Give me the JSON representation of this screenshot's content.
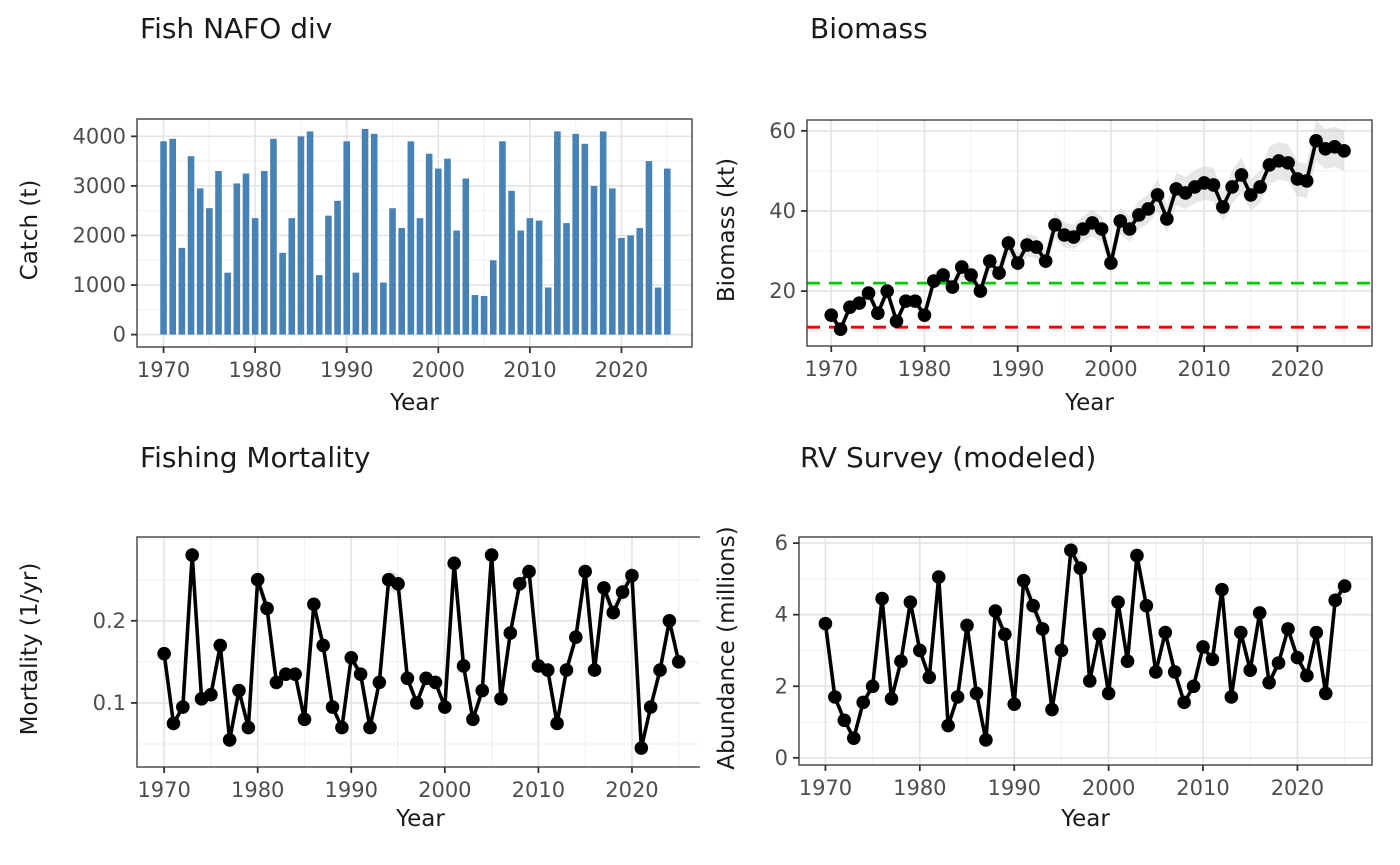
{
  "palette": {
    "bar_color": "#4682B4",
    "line_color": "#000000",
    "upper_reference_color": "#00CC00",
    "lower_reference_color": "#EE0000",
    "ribbon_color": "#C9C9C9"
  },
  "chart_data": [
    {
      "id": "catch",
      "type": "bar",
      "title": "Fish NAFO div",
      "xlabel": "Year",
      "ylabel": "Catch (t)",
      "xlim": [
        1967.1,
        2027.7
      ],
      "ylim": [
        -250,
        4350
      ],
      "x_ticks": [
        1970,
        1980,
        1990,
        2000,
        2010,
        2020
      ],
      "x_tick_labels": [
        "1970",
        "1980",
        "1990",
        "2000",
        "2010",
        "2020"
      ],
      "x_minor": [
        1975,
        1985,
        1995,
        2005,
        2015,
        2025
      ],
      "y_ticks": [
        0,
        1000,
        2000,
        3000,
        4000
      ],
      "y_tick_labels": [
        "0",
        "1000",
        "2000",
        "3000",
        "4000"
      ],
      "y_minor": [
        500,
        1500,
        2500,
        3500
      ],
      "bar_color": "#4682B4",
      "years": [
        1970,
        1971,
        1972,
        1973,
        1974,
        1975,
        1976,
        1977,
        1978,
        1979,
        1980,
        1981,
        1982,
        1983,
        1984,
        1985,
        1986,
        1987,
        1988,
        1989,
        1990,
        1991,
        1992,
        1993,
        1994,
        1995,
        1996,
        1997,
        1998,
        1999,
        2000,
        2001,
        2002,
        2003,
        2004,
        2005,
        2006,
        2007,
        2008,
        2009,
        2010,
        2011,
        2012,
        2013,
        2014,
        2015,
        2016,
        2017,
        2018,
        2019,
        2020,
        2021,
        2022,
        2023,
        2024,
        2025
      ],
      "values": [
        3900,
        3950,
        1750,
        3600,
        2950,
        2550,
        3300,
        1250,
        3050,
        3250,
        2350,
        3300,
        3950,
        1650,
        2350,
        4000,
        4100,
        1200,
        2400,
        2700,
        3900,
        1250,
        4150,
        4050,
        1050,
        2550,
        2150,
        3900,
        2350,
        3650,
        3350,
        3550,
        2100,
        3150,
        800,
        780,
        1500,
        3900,
        2900,
        2100,
        2350,
        2300,
        950,
        4100,
        2250,
        4050,
        3850,
        3000,
        4100,
        2950,
        1950,
        2000,
        2150,
        3500,
        950,
        3350
      ]
    },
    {
      "id": "biomass",
      "type": "line",
      "title": "Biomass",
      "xlabel": "Year",
      "ylabel": "Biomass (kt)",
      "xlim": [
        1967.4,
        2028.0
      ],
      "ylim": [
        6.3,
        62.7
      ],
      "x_ticks": [
        1970,
        1980,
        1990,
        2000,
        2010,
        2020
      ],
      "x_tick_labels": [
        "1970",
        "1980",
        "1990",
        "2000",
        "2010",
        "2020"
      ],
      "x_minor": [
        1975,
        1985,
        1995,
        2005,
        2015,
        2025
      ],
      "y_ticks": [
        20,
        40,
        60
      ],
      "y_tick_labels": [
        "20",
        "40",
        "60"
      ],
      "y_minor": [
        10,
        30,
        50
      ],
      "line_color": "#000000",
      "ribbon_frac": 0.09,
      "ref_lines": [
        {
          "y": 22,
          "color": "#00CC00",
          "style": "dashed"
        },
        {
          "y": 11,
          "color": "#EE0000",
          "style": "dashed"
        }
      ],
      "years": [
        1970,
        1971,
        1972,
        1973,
        1974,
        1975,
        1976,
        1977,
        1978,
        1979,
        1980,
        1981,
        1982,
        1983,
        1984,
        1985,
        1986,
        1987,
        1988,
        1989,
        1990,
        1991,
        1992,
        1993,
        1994,
        1995,
        1996,
        1997,
        1998,
        1999,
        2000,
        2001,
        2002,
        2003,
        2004,
        2005,
        2006,
        2007,
        2008,
        2009,
        2010,
        2011,
        2012,
        2013,
        2014,
        2015,
        2016,
        2017,
        2018,
        2019,
        2020,
        2021,
        2022,
        2023,
        2024,
        2025
      ],
      "values": [
        14,
        10.5,
        16,
        17,
        19.5,
        14.5,
        20,
        12.5,
        17.5,
        17.5,
        14,
        22.5,
        24,
        21,
        26,
        24,
        20,
        27.5,
        24.5,
        32,
        27,
        31.5,
        31,
        27.5,
        36.5,
        34,
        33.5,
        35.5,
        37,
        35.5,
        27,
        37.5,
        35.5,
        39,
        40.5,
        44,
        38,
        45.5,
        44.5,
        46,
        47,
        46.5,
        41,
        46,
        49,
        44,
        46,
        51.5,
        52.5,
        52,
        48,
        47.5,
        57.5,
        55.5,
        56,
        55
      ]
    },
    {
      "id": "mortality",
      "type": "line",
      "title": "Fishing Mortality",
      "xlabel": "Year",
      "ylabel": "Mortality (1/yr)",
      "xlim": [
        1967.1,
        2027.7
      ],
      "ylim": [
        0.022,
        0.302
      ],
      "x_ticks": [
        1970,
        1980,
        1990,
        2000,
        2010,
        2020
      ],
      "x_tick_labels": [
        "1970",
        "1980",
        "1990",
        "2000",
        "2010",
        "2020"
      ],
      "x_minor": [
        1975,
        1985,
        1995,
        2005,
        2015,
        2025
      ],
      "y_ticks": [
        0.1,
        0.2
      ],
      "y_tick_labels": [
        "0.1",
        "0.2"
      ],
      "y_minor": [
        0.05,
        0.15,
        0.25,
        0.3
      ],
      "line_color": "#000000",
      "ribbon_frac": 0.05,
      "years": [
        1970,
        1971,
        1972,
        1973,
        1974,
        1975,
        1976,
        1977,
        1978,
        1979,
        1980,
        1981,
        1982,
        1983,
        1984,
        1985,
        1986,
        1987,
        1988,
        1989,
        1990,
        1991,
        1992,
        1993,
        1994,
        1995,
        1996,
        1997,
        1998,
        1999,
        2000,
        2001,
        2002,
        2003,
        2004,
        2005,
        2006,
        2007,
        2008,
        2009,
        2010,
        2011,
        2012,
        2013,
        2014,
        2015,
        2016,
        2017,
        2018,
        2019,
        2020,
        2021,
        2022,
        2023,
        2024,
        2025
      ],
      "values": [
        0.16,
        0.075,
        0.095,
        0.28,
        0.105,
        0.11,
        0.17,
        0.055,
        0.115,
        0.07,
        0.25,
        0.215,
        0.125,
        0.135,
        0.135,
        0.08,
        0.22,
        0.17,
        0.095,
        0.07,
        0.155,
        0.135,
        0.07,
        0.125,
        0.25,
        0.245,
        0.13,
        0.1,
        0.13,
        0.125,
        0.095,
        0.27,
        0.145,
        0.08,
        0.115,
        0.28,
        0.105,
        0.185,
        0.245,
        0.26,
        0.145,
        0.14,
        0.075,
        0.14,
        0.18,
        0.26,
        0.14,
        0.24,
        0.21,
        0.235,
        0.255,
        0.045,
        0.095,
        0.14,
        0.2,
        0.15
      ]
    },
    {
      "id": "rv",
      "type": "line",
      "title": "RV Survey (modeled)",
      "xlabel": "Year",
      "ylabel": "Abundance (millions)",
      "xlim": [
        1967.2,
        2027.9
      ],
      "ylim": [
        -0.2,
        6.17
      ],
      "x_ticks": [
        1970,
        1980,
        1990,
        2000,
        2010,
        2020
      ],
      "x_tick_labels": [
        "1970",
        "1980",
        "1990",
        "2000",
        "2010",
        "2020"
      ],
      "x_minor": [
        1975,
        1985,
        1995,
        2005,
        2015,
        2025
      ],
      "y_ticks": [
        0,
        2,
        4,
        6
      ],
      "y_tick_labels": [
        "0",
        "2",
        "4",
        "6"
      ],
      "y_minor": [
        1,
        3,
        5
      ],
      "line_color": "#000000",
      "ribbon_frac": 0.06,
      "years": [
        1970,
        1971,
        1972,
        1973,
        1974,
        1975,
        1976,
        1977,
        1978,
        1979,
        1980,
        1981,
        1982,
        1983,
        1984,
        1985,
        1986,
        1987,
        1988,
        1989,
        1990,
        1991,
        1992,
        1993,
        1994,
        1995,
        1996,
        1997,
        1998,
        1999,
        2000,
        2001,
        2002,
        2003,
        2004,
        2005,
        2006,
        2007,
        2008,
        2009,
        2010,
        2011,
        2012,
        2013,
        2014,
        2015,
        2016,
        2017,
        2018,
        2019,
        2020,
        2021,
        2022,
        2023,
        2024,
        2025
      ],
      "values": [
        3.75,
        1.7,
        1.05,
        0.55,
        1.55,
        2.0,
        4.45,
        1.65,
        2.7,
        4.35,
        3.0,
        2.25,
        5.05,
        0.9,
        1.7,
        3.7,
        1.8,
        0.5,
        4.1,
        3.45,
        1.5,
        4.95,
        4.25,
        3.6,
        1.35,
        3.0,
        5.8,
        5.3,
        2.15,
        3.45,
        1.8,
        4.35,
        2.7,
        5.65,
        4.25,
        2.4,
        3.5,
        2.4,
        1.55,
        2.0,
        3.1,
        2.75,
        4.7,
        1.7,
        3.5,
        2.45,
        4.05,
        2.1,
        2.65,
        3.6,
        2.8,
        2.3,
        3.5,
        1.8,
        4.4,
        4.8
      ]
    }
  ]
}
